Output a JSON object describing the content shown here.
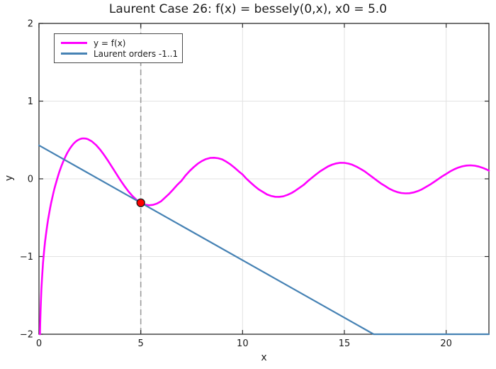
{
  "chart_data": {
    "type": "line",
    "title": "Laurent Case 26: f(x) = bessely(0,x), x0 = 5.0",
    "xlabel": "x",
    "ylabel": "y",
    "xlim": [
      0,
      22.1
    ],
    "ylim": [
      -2,
      2
    ],
    "xticks": [
      0,
      5,
      10,
      15,
      20
    ],
    "xtick_labels": [
      "0",
      "5",
      "10",
      "15",
      "20"
    ],
    "yticks": [
      -2,
      -1,
      0,
      1,
      2
    ],
    "ytick_labels": [
      "−2",
      "−1",
      "0",
      "1",
      "2"
    ],
    "grid": true,
    "legend_position": "top-left",
    "axis_color": "#2a2a2a",
    "grid_color": "#e2e2e2",
    "text_color": "#1c1c1c",
    "x0": 5.0,
    "series": [
      {
        "id": "fx",
        "name": "y = f(x)",
        "color": "#ff00ff",
        "width": 2.6,
        "points": [
          [
            0.0486,
            -2.0
          ],
          [
            0.06,
            -1.865
          ],
          [
            0.08,
            -1.682
          ],
          [
            0.1,
            -1.5342
          ],
          [
            0.12,
            -1.4227
          ],
          [
            0.15,
            -1.2807
          ],
          [
            0.2,
            -1.0811
          ],
          [
            0.25,
            -0.9316
          ],
          [
            0.3,
            -0.8073
          ],
          [
            0.35,
            -0.7003
          ],
          [
            0.4,
            -0.606
          ],
          [
            0.45,
            -0.5214
          ],
          [
            0.5,
            -0.4445
          ],
          [
            0.55,
            -0.3739
          ],
          [
            0.6,
            -0.3085
          ],
          [
            0.65,
            -0.2476
          ],
          [
            0.7,
            -0.1907
          ],
          [
            0.75,
            -0.1372
          ],
          [
            0.8,
            -0.0868
          ],
          [
            0.9,
            0.0056
          ],
          [
            1.0,
            0.0883
          ],
          [
            1.1,
            0.1622
          ],
          [
            1.2,
            0.2281
          ],
          [
            1.3,
            0.2865
          ],
          [
            1.4,
            0.3379
          ],
          [
            1.5,
            0.3824
          ],
          [
            1.6,
            0.4204
          ],
          [
            1.7,
            0.452
          ],
          [
            1.8,
            0.4774
          ],
          [
            1.9,
            0.4968
          ],
          [
            2.0,
            0.5104
          ],
          [
            2.1,
            0.5183
          ],
          [
            2.2,
            0.5208
          ],
          [
            2.3,
            0.5181
          ],
          [
            2.4,
            0.5104
          ],
          [
            2.6,
            0.4813
          ],
          [
            2.8,
            0.4359
          ],
          [
            3.0,
            0.3769
          ],
          [
            3.2,
            0.3071
          ],
          [
            3.4,
            0.2296
          ],
          [
            3.6,
            0.1477
          ],
          [
            3.8,
            0.0645
          ],
          [
            4.0,
            -0.0169
          ],
          [
            4.2,
            -0.0938
          ],
          [
            4.4,
            -0.1633
          ],
          [
            4.6,
            -0.2235
          ],
          [
            4.8,
            -0.2723
          ],
          [
            5.0,
            -0.3085
          ],
          [
            5.2,
            -0.3313
          ],
          [
            5.4,
            -0.3402
          ],
          [
            5.6,
            -0.3354
          ],
          [
            5.8,
            -0.3177
          ],
          [
            6.0,
            -0.2882
          ],
          [
            6.2,
            -0.2403
          ],
          [
            6.4,
            -0.1906
          ],
          [
            6.6,
            -0.135
          ],
          [
            6.8,
            -0.0758
          ],
          [
            7.0,
            -0.0259
          ],
          [
            7.2,
            0.0441
          ],
          [
            7.4,
            0.1001
          ],
          [
            7.6,
            0.1508
          ],
          [
            7.8,
            0.1942
          ],
          [
            8.0,
            0.2289
          ],
          [
            8.2,
            0.2539
          ],
          [
            8.4,
            0.2684
          ],
          [
            8.6,
            0.2715
          ],
          [
            8.8,
            0.2649
          ],
          [
            9.0,
            0.2499
          ],
          [
            9.2,
            0.2212
          ],
          [
            9.4,
            0.1864
          ],
          [
            9.6,
            0.1448
          ],
          [
            9.8,
            0.0988
          ],
          [
            10.0,
            0.0557
          ],
          [
            10.2,
            -0.0005
          ],
          [
            10.4,
            -0.0496
          ],
          [
            10.6,
            -0.096
          ],
          [
            10.8,
            -0.1374
          ],
          [
            11.0,
            -0.1688
          ],
          [
            11.2,
            -0.2006
          ],
          [
            11.4,
            -0.2203
          ],
          [
            11.6,
            -0.2309
          ],
          [
            11.8,
            -0.2322
          ],
          [
            12.0,
            -0.2252
          ],
          [
            12.2,
            -0.2077
          ],
          [
            12.4,
            -0.1832
          ],
          [
            12.6,
            -0.1518
          ],
          [
            12.8,
            -0.115
          ],
          [
            13.0,
            -0.0782
          ],
          [
            13.2,
            -0.0311
          ],
          [
            13.4,
            0.0125
          ],
          [
            13.6,
            0.0551
          ],
          [
            13.8,
            0.0948
          ],
          [
            14.0,
            0.1275
          ],
          [
            14.2,
            0.16
          ],
          [
            14.4,
            0.1831
          ],
          [
            14.6,
            0.1986
          ],
          [
            14.8,
            0.2061
          ],
          [
            15.0,
            0.2055
          ],
          [
            15.2,
            0.1963
          ],
          [
            15.4,
            0.1798
          ],
          [
            15.6,
            0.1564
          ],
          [
            15.8,
            0.1271
          ],
          [
            16.0,
            0.0958
          ],
          [
            16.2,
            0.0559
          ],
          [
            16.4,
            0.0169
          ],
          [
            16.6,
            -0.0223
          ],
          [
            16.8,
            -0.0601
          ],
          [
            17.0,
            -0.0926
          ],
          [
            17.2,
            -0.126
          ],
          [
            17.4,
            -0.1514
          ],
          [
            17.6,
            -0.1706
          ],
          [
            17.8,
            -0.1828
          ],
          [
            18.0,
            -0.1875
          ],
          [
            18.2,
            -0.1851
          ],
          [
            18.4,
            -0.1752
          ],
          [
            18.6,
            -0.1585
          ],
          [
            18.8,
            -0.1357
          ],
          [
            19.0,
            -0.1057
          ],
          [
            19.2,
            -0.0759
          ],
          [
            19.4,
            -0.0411
          ],
          [
            19.6,
            -0.0052
          ],
          [
            19.8,
            0.0306
          ],
          [
            20.0,
            0.0626
          ],
          [
            20.2,
            0.096
          ],
          [
            20.4,
            0.1232
          ],
          [
            20.6,
            0.1451
          ],
          [
            20.8,
            0.1611
          ],
          [
            21.0,
            0.1709
          ],
          [
            21.2,
            0.1733
          ],
          [
            21.4,
            0.169
          ],
          [
            21.6,
            0.1581
          ],
          [
            21.8,
            0.141
          ],
          [
            22.0,
            0.1186
          ],
          [
            22.1,
            0.1055
          ]
        ]
      },
      {
        "id": "laurent",
        "name": "Laurent orders -1..1",
        "color": "#4682b4",
        "width": 2.2,
        "points": [
          [
            0,
            0.4308
          ],
          [
            16.44,
            -2.0
          ],
          [
            22.1,
            -2.0
          ]
        ]
      }
    ],
    "vline": {
      "x": 5.0,
      "color": "#9b9b9b",
      "style": "dashed"
    },
    "marker": {
      "x": 5.0,
      "y": -0.3085,
      "fill": "#fe0000",
      "stroke": "#1a1a1a",
      "radius": 5.5
    }
  }
}
